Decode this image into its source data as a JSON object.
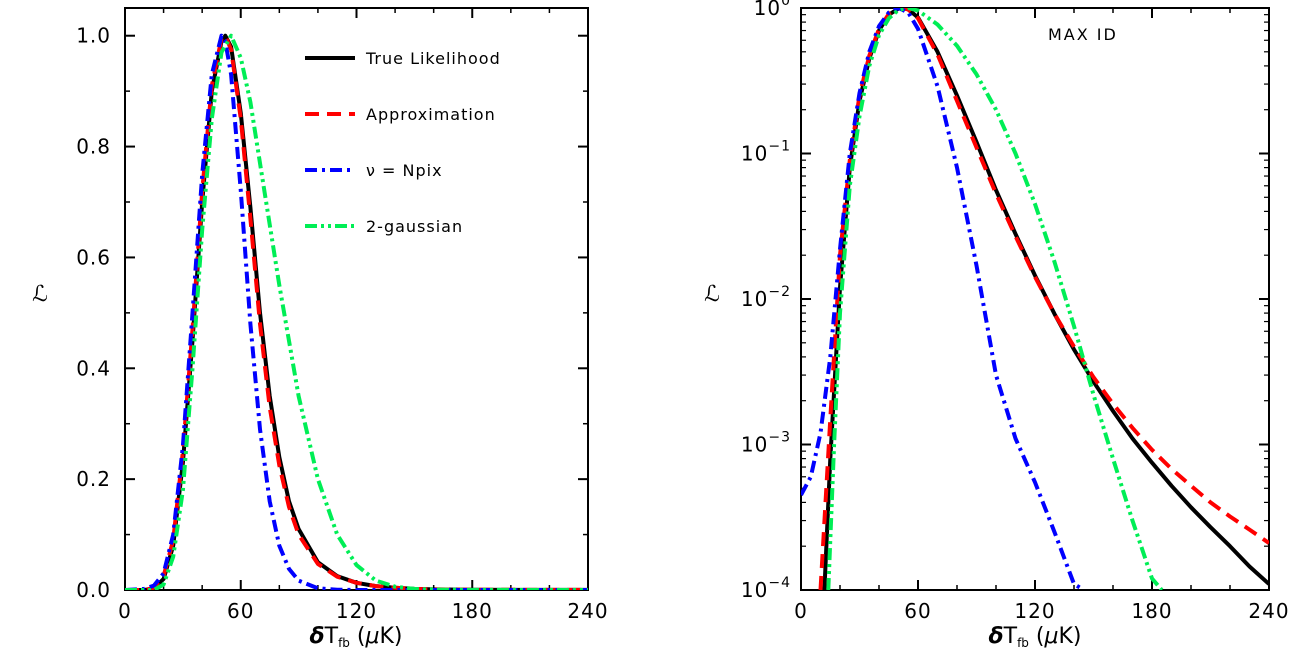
{
  "chart_data": [
    {
      "type": "line",
      "panel": "left",
      "xlabel": "δT_fb (μK)",
      "ylabel": "ℒ",
      "xlim": [
        0,
        240
      ],
      "ylim": [
        0,
        1.05
      ],
      "yscale": "linear",
      "xticks": [
        "0",
        "60",
        "120",
        "180",
        "240"
      ],
      "yticks": [
        "0.0",
        "0.2",
        "0.4",
        "0.6",
        "0.8",
        "1.0"
      ],
      "legend_position": "top-right",
      "series": [
        {
          "name": "True Likelihood",
          "color": "#000000",
          "style": "solid",
          "x": [
            0,
            10,
            15,
            20,
            25,
            30,
            35,
            40,
            45,
            50,
            52,
            55,
            60,
            65,
            70,
            75,
            80,
            85,
            90,
            100,
            110,
            120,
            130,
            140,
            150,
            160,
            180,
            200,
            240
          ],
          "y": [
            0,
            0,
            0.003,
            0.02,
            0.08,
            0.23,
            0.45,
            0.7,
            0.9,
            0.99,
            1.0,
            0.98,
            0.86,
            0.69,
            0.5,
            0.35,
            0.24,
            0.16,
            0.11,
            0.05,
            0.025,
            0.013,
            0.007,
            0.004,
            0.002,
            0.001,
            0.0005,
            0.0002,
            0.0001
          ]
        },
        {
          "name": "Approximation",
          "color": "#ff0000",
          "style": "dashed",
          "x": [
            0,
            10,
            15,
            20,
            25,
            30,
            35,
            40,
            45,
            50,
            52,
            55,
            60,
            65,
            70,
            75,
            80,
            85,
            90,
            100,
            110,
            120,
            130,
            140,
            150,
            160,
            180,
            200,
            240
          ],
          "y": [
            0,
            0,
            0.004,
            0.025,
            0.09,
            0.25,
            0.47,
            0.72,
            0.91,
            0.995,
            1.0,
            0.975,
            0.85,
            0.67,
            0.48,
            0.33,
            0.225,
            0.15,
            0.1,
            0.047,
            0.024,
            0.013,
            0.007,
            0.004,
            0.002,
            0.001,
            0.0005,
            0.0003,
            0.0002
          ]
        },
        {
          "name": "ν = Npix",
          "color": "#0000ff",
          "style": "dashdot",
          "x": [
            0,
            10,
            15,
            20,
            25,
            30,
            35,
            40,
            45,
            50,
            52,
            55,
            60,
            65,
            70,
            75,
            80,
            85,
            90,
            100,
            110,
            120,
            140,
            240
          ],
          "y": [
            0,
            0.002,
            0.008,
            0.03,
            0.1,
            0.26,
            0.5,
            0.75,
            0.93,
            1.0,
            0.99,
            0.93,
            0.72,
            0.48,
            0.29,
            0.16,
            0.08,
            0.038,
            0.017,
            0.003,
            0.0005,
            0,
            0,
            0
          ]
        },
        {
          "name": "2-gaussian",
          "color": "#00ee55",
          "style": "dashdotdot",
          "x": [
            0,
            10,
            15,
            20,
            25,
            30,
            35,
            40,
            45,
            50,
            55,
            60,
            65,
            70,
            80,
            90,
            100,
            110,
            120,
            130,
            140,
            150,
            160,
            180,
            240
          ],
          "y": [
            0,
            0,
            0,
            0.01,
            0.06,
            0.18,
            0.4,
            0.65,
            0.85,
            0.97,
            1.0,
            0.96,
            0.88,
            0.77,
            0.55,
            0.35,
            0.2,
            0.1,
            0.045,
            0.017,
            0.006,
            0.002,
            0.0007,
            0.0001,
            0
          ]
        }
      ]
    },
    {
      "type": "line",
      "panel": "right",
      "xlabel": "δT_fb (μK)",
      "ylabel": "ℒ",
      "annotation": "MAX ID",
      "xlim": [
        0,
        240
      ],
      "ylim": [
        0.0001,
        1
      ],
      "yscale": "log",
      "xticks": [
        "0",
        "60",
        "120",
        "180",
        "240"
      ],
      "yticks": [
        {
          "base": "10",
          "exp": "0"
        },
        {
          "base": "10",
          "exp": "−1"
        },
        {
          "base": "10",
          "exp": "−2"
        },
        {
          "base": "10",
          "exp": "−3"
        },
        {
          "base": "10",
          "exp": "−4"
        }
      ],
      "series": [
        {
          "name": "True Likelihood",
          "color": "#000000",
          "style": "solid",
          "x": [
            12,
            15,
            20,
            25,
            30,
            35,
            40,
            45,
            50,
            52,
            55,
            60,
            70,
            80,
            90,
            100,
            110,
            120,
            130,
            140,
            150,
            160,
            170,
            180,
            190,
            200,
            210,
            220,
            230,
            240
          ],
          "y": [
            0.0001,
            0.0008,
            0.012,
            0.08,
            0.23,
            0.45,
            0.7,
            0.9,
            0.99,
            1.0,
            0.98,
            0.86,
            0.5,
            0.25,
            0.12,
            0.056,
            0.028,
            0.0145,
            0.0079,
            0.0045,
            0.0027,
            0.0017,
            0.0011,
            0.00075,
            0.00052,
            0.00037,
            0.00027,
            0.0002,
            0.000145,
            0.00011
          ]
        },
        {
          "name": "Approximation",
          "color": "#ff0000",
          "style": "dashed",
          "x": [
            10,
            15,
            20,
            25,
            30,
            35,
            40,
            45,
            50,
            52,
            55,
            60,
            70,
            80,
            90,
            100,
            110,
            120,
            130,
            140,
            150,
            160,
            170,
            180,
            190,
            200,
            210,
            220,
            230,
            240
          ],
          "y": [
            0.0001,
            0.0015,
            0.02,
            0.09,
            0.25,
            0.47,
            0.72,
            0.91,
            0.995,
            1.0,
            0.975,
            0.85,
            0.48,
            0.23,
            0.11,
            0.053,
            0.027,
            0.0142,
            0.0079,
            0.0047,
            0.0029,
            0.0019,
            0.0013,
            0.00092,
            0.00068,
            0.00052,
            0.0004,
            0.00032,
            0.00026,
            0.00021
          ]
        },
        {
          "name": "ν = Npix",
          "color": "#0000ff",
          "style": "dashdot",
          "x": [
            0,
            5,
            10,
            15,
            20,
            25,
            30,
            35,
            40,
            45,
            50,
            55,
            60,
            70,
            80,
            90,
            100,
            110,
            120,
            130,
            140,
            145
          ],
          "y": [
            0.00045,
            0.0006,
            0.0012,
            0.004,
            0.022,
            0.1,
            0.26,
            0.5,
            0.75,
            0.93,
            1.0,
            0.93,
            0.72,
            0.29,
            0.08,
            0.017,
            0.003,
            0.0011,
            0.00055,
            0.00025,
            0.00011,
            0.0001
          ]
        },
        {
          "name": "2-gaussian",
          "color": "#00ee55",
          "style": "dashdotdot",
          "x": [
            14,
            17,
            20,
            25,
            30,
            35,
            40,
            45,
            50,
            55,
            60,
            70,
            80,
            90,
            100,
            110,
            120,
            130,
            140,
            150,
            160,
            170,
            180,
            185
          ],
          "y": [
            0.0001,
            0.001,
            0.008,
            0.06,
            0.18,
            0.4,
            0.65,
            0.85,
            0.97,
            1.0,
            0.96,
            0.77,
            0.55,
            0.35,
            0.2,
            0.1,
            0.045,
            0.018,
            0.0065,
            0.0022,
            0.0008,
            0.0003,
            0.00012,
            0.0001
          ]
        }
      ]
    }
  ]
}
